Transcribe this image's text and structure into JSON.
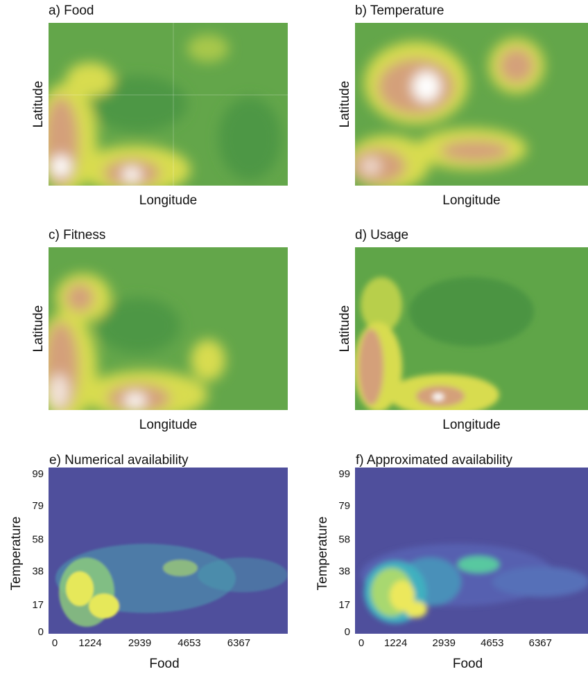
{
  "chart_data": [
    {
      "type": "heatmap",
      "title": "a) Food",
      "x_label": "Longitude",
      "y_label": "Latitude"
    },
    {
      "type": "heatmap",
      "title": "b) Temperature",
      "x_label": "Longitude",
      "y_label": "Latitude"
    },
    {
      "type": "heatmap",
      "title": "c) Fitness",
      "x_label": "Longitude",
      "y_label": "Latitude"
    },
    {
      "type": "heatmap",
      "title": "d) Usage",
      "x_label": "Longitude",
      "y_label": "Latitude"
    },
    {
      "type": "heatmap",
      "title": "e) Numerical availability",
      "x_label": "Food",
      "y_label": "Temperature",
      "xlim": [
        0,
        8060
      ],
      "xticks": [
        0,
        1224,
        2939,
        4653,
        6367
      ],
      "ylim": [
        0,
        99
      ],
      "yticks": [
        0,
        17,
        38,
        58,
        79,
        99
      ]
    },
    {
      "type": "heatmap",
      "title": "f) Approximated availability",
      "x_label": "Food",
      "y_label": "Temperature",
      "xlim": [
        0,
        8060
      ],
      "xticks": [
        0,
        1224,
        2939,
        4653,
        6367
      ],
      "ylim": [
        0,
        99
      ],
      "yticks": [
        0,
        17,
        38,
        58,
        79,
        99
      ]
    }
  ]
}
